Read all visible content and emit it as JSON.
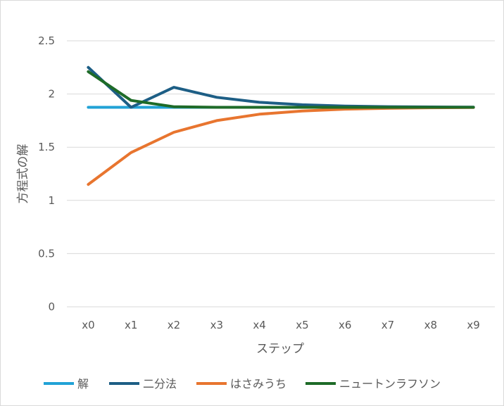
{
  "chart_data": {
    "type": "line",
    "title": "",
    "xlabel": "ステップ",
    "ylabel": "方程式の解",
    "categories": [
      "x0",
      "x1",
      "x2",
      "x3",
      "x4",
      "x5",
      "x6",
      "x7",
      "x8",
      "x9"
    ],
    "ylim": [
      0,
      2.5
    ],
    "yticks": [
      "0",
      "0.5",
      "1",
      "1.5",
      "2",
      "2.5"
    ],
    "grid": true,
    "legend_position": "bottom",
    "series": [
      {
        "name": "解",
        "color": "#21A2D6",
        "values": [
          1.875,
          1.875,
          1.875,
          1.875,
          1.875,
          1.875,
          1.875,
          1.875,
          1.875,
          1.875
        ]
      },
      {
        "name": "二分法",
        "color": "#1D5E85",
        "values": [
          2.25,
          1.875,
          2.063,
          1.969,
          1.922,
          1.899,
          1.887,
          1.881,
          1.878,
          1.876
        ]
      },
      {
        "name": "はさみうち",
        "color": "#E8752F",
        "values": [
          1.15,
          1.45,
          1.64,
          1.75,
          1.81,
          1.84,
          1.858,
          1.866,
          1.871,
          1.873
        ]
      },
      {
        "name": "ニュートンラフソン",
        "color": "#1E6B28",
        "values": [
          2.21,
          1.94,
          1.88,
          1.875,
          1.875,
          1.875,
          1.875,
          1.875,
          1.875,
          1.875
        ]
      }
    ]
  }
}
